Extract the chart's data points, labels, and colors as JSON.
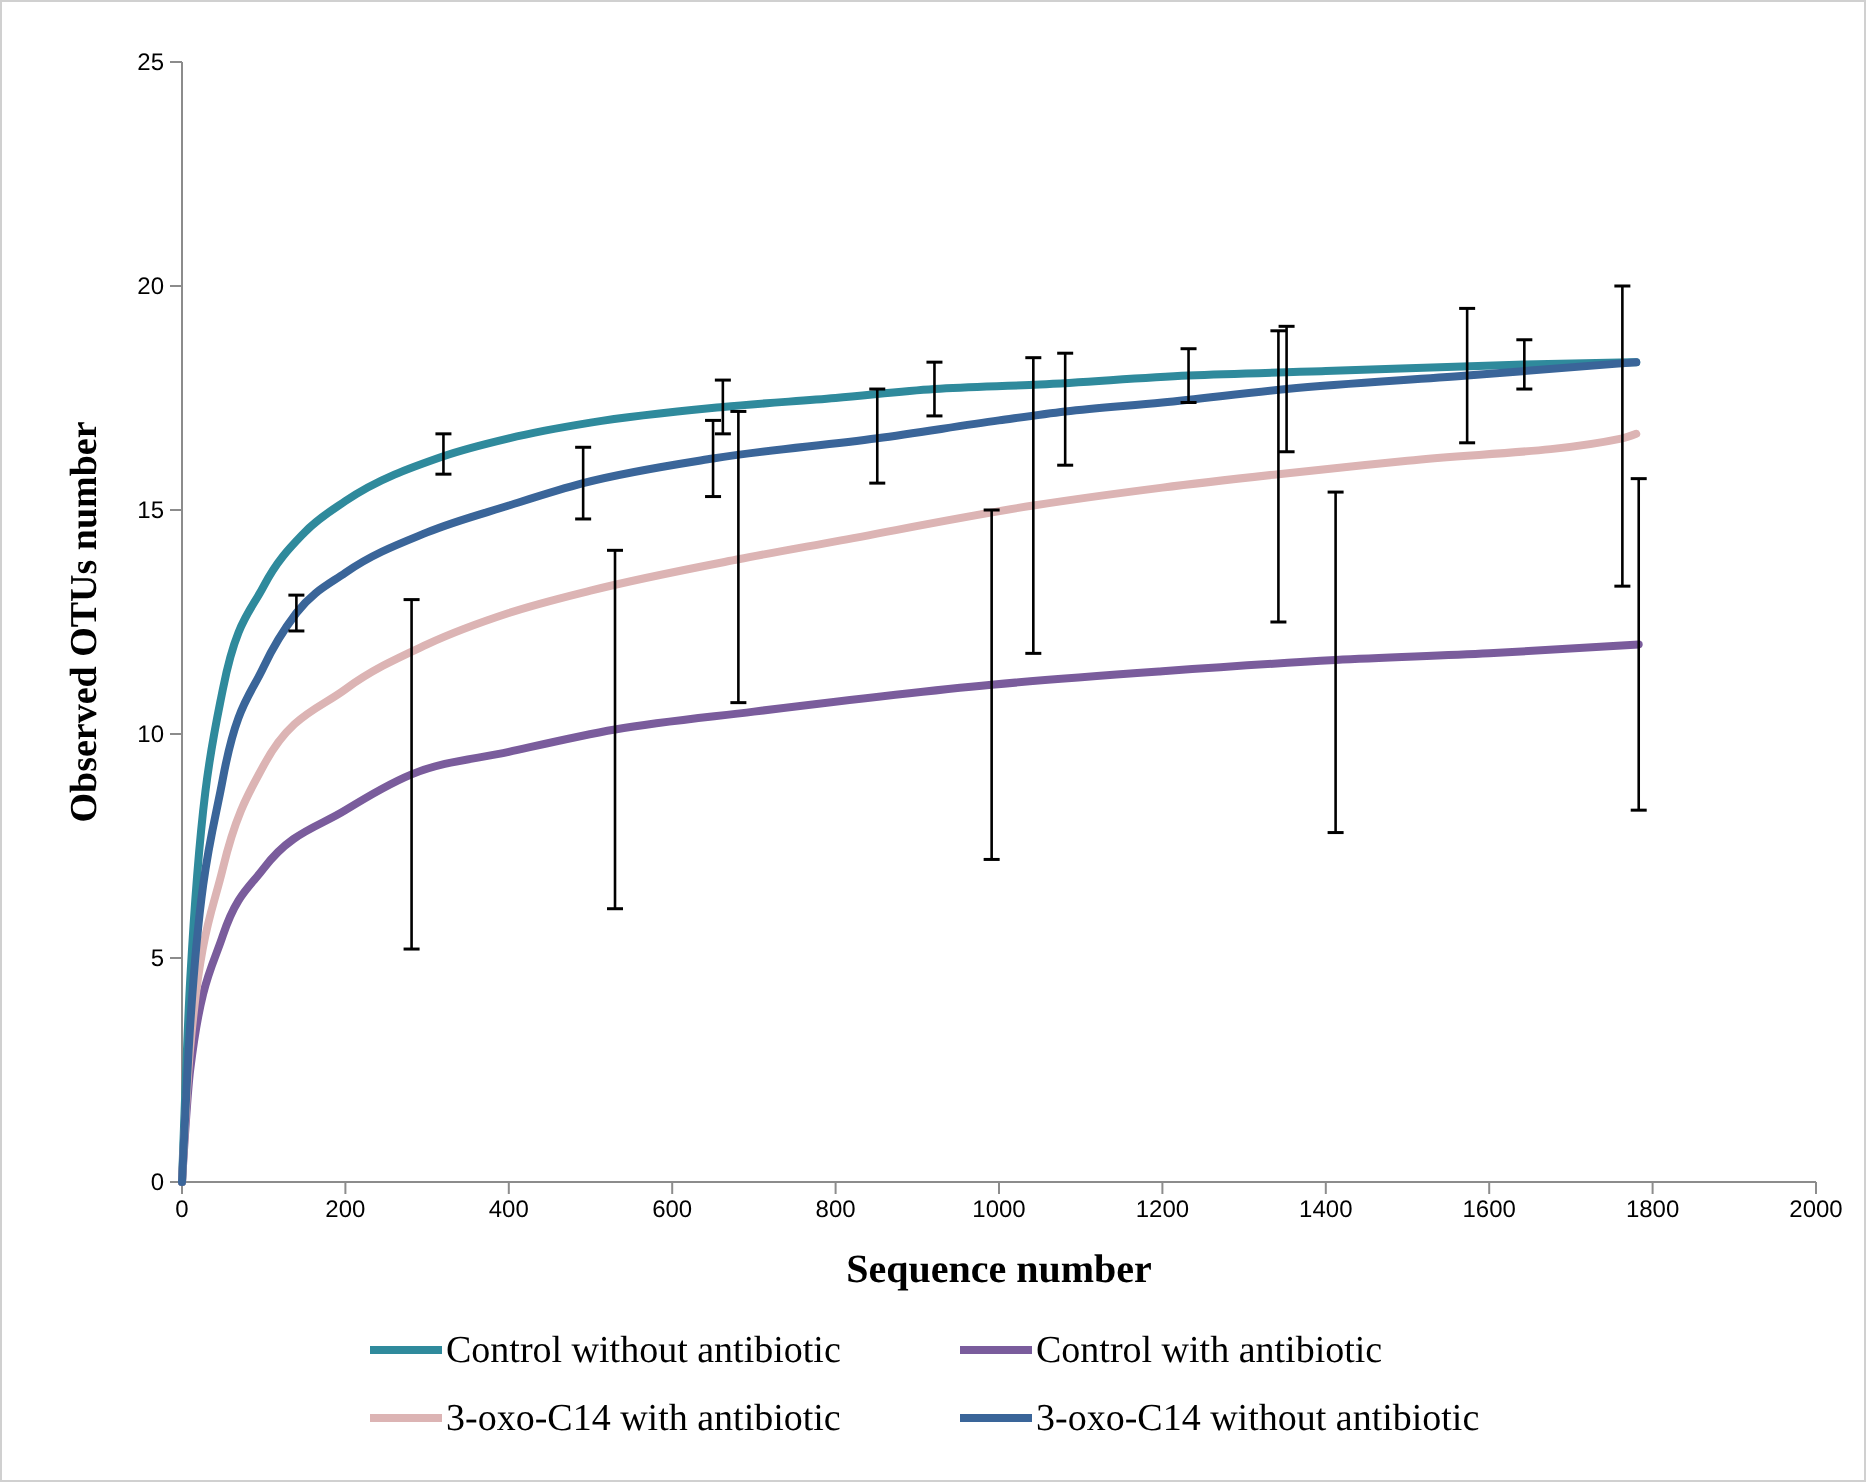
{
  "chart_data": {
    "type": "line",
    "xlabel": "Sequence number",
    "ylabel": "Observed OTUs number",
    "xlim": [
      0,
      2000
    ],
    "ylim": [
      0,
      25
    ],
    "xticks": [
      0,
      200,
      400,
      600,
      800,
      1000,
      1200,
      1400,
      1600,
      1800,
      2000
    ],
    "yticks": [
      0,
      5,
      10,
      15,
      20,
      25
    ],
    "grid": false,
    "legend": "bottom",
    "marker": "none",
    "line_style": "solid",
    "series": [
      {
        "name": "Control without antibiotic",
        "color": "#2f8a9c",
        "x": [
          0,
          10,
          50,
          100,
          150,
          200,
          320,
          400,
          500,
          662,
          800,
          921,
          1050,
          1232,
          1400,
          1643,
          1780
        ],
        "values": [
          0,
          4.5,
          11,
          13.3,
          14.5,
          15.2,
          16.2,
          16.6,
          16.95,
          17.3,
          17.5,
          17.7,
          17.8,
          18.0,
          18.1,
          18.25,
          18.3
        ],
        "errors": [
          null,
          null,
          null,
          null,
          null,
          null,
          [
            15.8,
            16.7
          ],
          null,
          null,
          [
            16.7,
            17.9
          ],
          null,
          [
            17.1,
            18.3
          ],
          null,
          [
            17.4,
            18.6
          ],
          null,
          [
            17.7,
            18.8
          ],
          null
        ]
      },
      {
        "name": "Control with antibiotic",
        "color": "#7a5c9c",
        "x": [
          0,
          10,
          50,
          100,
          200,
          281,
          400,
          530,
          700,
          991,
          1200,
          1412,
          1600,
          1783
        ],
        "values": [
          0,
          2.5,
          5.5,
          7,
          8.3,
          9.1,
          9.6,
          10.1,
          10.5,
          11.1,
          11.4,
          11.65,
          11.8,
          12.0
        ],
        "errors": [
          null,
          null,
          null,
          null,
          null,
          [
            5.2,
            13.0
          ],
          null,
          [
            6.1,
            14.1
          ],
          null,
          [
            7.2,
            15.0
          ],
          null,
          [
            7.8,
            15.4
          ],
          null,
          [
            8.3,
            15.7
          ]
        ]
      },
      {
        "name": "3-oxo-C14 with antibiotic",
        "color": "#dcb4b4",
        "x": [
          0,
          10,
          50,
          100,
          200,
          300,
          400,
          500,
          681,
          800,
          1042,
          1200,
          1342,
          1500,
          1763,
          1780
        ],
        "values": [
          0,
          3,
          7,
          9.3,
          11,
          12,
          12.7,
          13.2,
          13.9,
          14.3,
          15.1,
          15.5,
          15.8,
          16.1,
          16.6,
          16.7
        ],
        "errors": [
          null,
          null,
          null,
          null,
          null,
          null,
          null,
          null,
          [
            10.7,
            17.2
          ],
          null,
          [
            11.8,
            18.4
          ],
          null,
          [
            12.5,
            19.0
          ],
          null,
          [
            13.3,
            20.0
          ],
          null
        ]
      },
      {
        "name": "3-oxo-C14 without antibiotic",
        "color": "#3a6599",
        "x": [
          0,
          10,
          50,
          100,
          140,
          200,
          300,
          400,
          491,
          650,
          851,
          1000,
          1081,
          1200,
          1352,
          1573,
          1780
        ],
        "values": [
          0,
          3.5,
          9,
          11.5,
          12.7,
          13.6,
          14.5,
          15.1,
          15.6,
          16.15,
          16.6,
          17.0,
          17.2,
          17.4,
          17.7,
          18.0,
          18.3
        ],
        "errors": [
          null,
          null,
          null,
          null,
          [
            12.3,
            13.1
          ],
          null,
          null,
          null,
          [
            14.8,
            16.4
          ],
          [
            15.3,
            17.0
          ],
          [
            15.6,
            17.7
          ],
          null,
          [
            16.0,
            18.5
          ],
          null,
          [
            16.3,
            19.1
          ],
          [
            16.5,
            19.5
          ],
          null
        ]
      }
    ]
  }
}
